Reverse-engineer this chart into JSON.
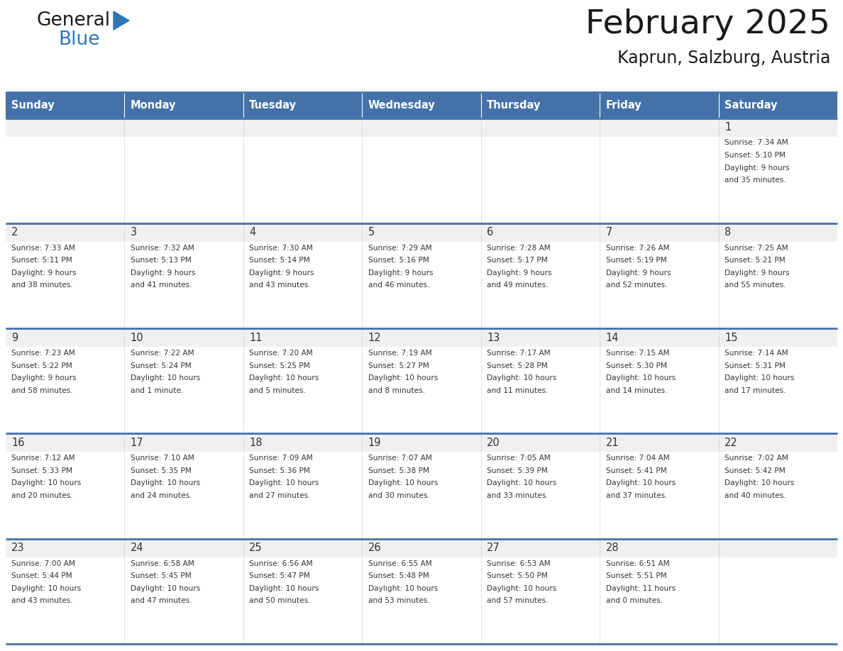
{
  "title": "February 2025",
  "subtitle": "Kaprun, Salzburg, Austria",
  "days_of_week": [
    "Sunday",
    "Monday",
    "Tuesday",
    "Wednesday",
    "Thursday",
    "Friday",
    "Saturday"
  ],
  "header_bg": "#4472a8",
  "header_text": "#ffffff",
  "cell_bg_light": "#f0f0f0",
  "cell_bg_white": "#ffffff",
  "row_border_color": "#4472a8",
  "text_color": "#333333",
  "calendar_data": [
    [
      {
        "day": null,
        "sunrise": null,
        "sunset": null,
        "daylight": null
      },
      {
        "day": null,
        "sunrise": null,
        "sunset": null,
        "daylight": null
      },
      {
        "day": null,
        "sunrise": null,
        "sunset": null,
        "daylight": null
      },
      {
        "day": null,
        "sunrise": null,
        "sunset": null,
        "daylight": null
      },
      {
        "day": null,
        "sunrise": null,
        "sunset": null,
        "daylight": null
      },
      {
        "day": null,
        "sunrise": null,
        "sunset": null,
        "daylight": null
      },
      {
        "day": 1,
        "sunrise": "7:34 AM",
        "sunset": "5:10 PM",
        "daylight": "9 hours\nand 35 minutes."
      }
    ],
    [
      {
        "day": 2,
        "sunrise": "7:33 AM",
        "sunset": "5:11 PM",
        "daylight": "9 hours\nand 38 minutes."
      },
      {
        "day": 3,
        "sunrise": "7:32 AM",
        "sunset": "5:13 PM",
        "daylight": "9 hours\nand 41 minutes."
      },
      {
        "day": 4,
        "sunrise": "7:30 AM",
        "sunset": "5:14 PM",
        "daylight": "9 hours\nand 43 minutes."
      },
      {
        "day": 5,
        "sunrise": "7:29 AM",
        "sunset": "5:16 PM",
        "daylight": "9 hours\nand 46 minutes."
      },
      {
        "day": 6,
        "sunrise": "7:28 AM",
        "sunset": "5:17 PM",
        "daylight": "9 hours\nand 49 minutes."
      },
      {
        "day": 7,
        "sunrise": "7:26 AM",
        "sunset": "5:19 PM",
        "daylight": "9 hours\nand 52 minutes."
      },
      {
        "day": 8,
        "sunrise": "7:25 AM",
        "sunset": "5:21 PM",
        "daylight": "9 hours\nand 55 minutes."
      }
    ],
    [
      {
        "day": 9,
        "sunrise": "7:23 AM",
        "sunset": "5:22 PM",
        "daylight": "9 hours\nand 58 minutes."
      },
      {
        "day": 10,
        "sunrise": "7:22 AM",
        "sunset": "5:24 PM",
        "daylight": "10 hours\nand 1 minute."
      },
      {
        "day": 11,
        "sunrise": "7:20 AM",
        "sunset": "5:25 PM",
        "daylight": "10 hours\nand 5 minutes."
      },
      {
        "day": 12,
        "sunrise": "7:19 AM",
        "sunset": "5:27 PM",
        "daylight": "10 hours\nand 8 minutes."
      },
      {
        "day": 13,
        "sunrise": "7:17 AM",
        "sunset": "5:28 PM",
        "daylight": "10 hours\nand 11 minutes."
      },
      {
        "day": 14,
        "sunrise": "7:15 AM",
        "sunset": "5:30 PM",
        "daylight": "10 hours\nand 14 minutes."
      },
      {
        "day": 15,
        "sunrise": "7:14 AM",
        "sunset": "5:31 PM",
        "daylight": "10 hours\nand 17 minutes."
      }
    ],
    [
      {
        "day": 16,
        "sunrise": "7:12 AM",
        "sunset": "5:33 PM",
        "daylight": "10 hours\nand 20 minutes."
      },
      {
        "day": 17,
        "sunrise": "7:10 AM",
        "sunset": "5:35 PM",
        "daylight": "10 hours\nand 24 minutes."
      },
      {
        "day": 18,
        "sunrise": "7:09 AM",
        "sunset": "5:36 PM",
        "daylight": "10 hours\nand 27 minutes."
      },
      {
        "day": 19,
        "sunrise": "7:07 AM",
        "sunset": "5:38 PM",
        "daylight": "10 hours\nand 30 minutes."
      },
      {
        "day": 20,
        "sunrise": "7:05 AM",
        "sunset": "5:39 PM",
        "daylight": "10 hours\nand 33 minutes."
      },
      {
        "day": 21,
        "sunrise": "7:04 AM",
        "sunset": "5:41 PM",
        "daylight": "10 hours\nand 37 minutes."
      },
      {
        "day": 22,
        "sunrise": "7:02 AM",
        "sunset": "5:42 PM",
        "daylight": "10 hours\nand 40 minutes."
      }
    ],
    [
      {
        "day": 23,
        "sunrise": "7:00 AM",
        "sunset": "5:44 PM",
        "daylight": "10 hours\nand 43 minutes."
      },
      {
        "day": 24,
        "sunrise": "6:58 AM",
        "sunset": "5:45 PM",
        "daylight": "10 hours\nand 47 minutes."
      },
      {
        "day": 25,
        "sunrise": "6:56 AM",
        "sunset": "5:47 PM",
        "daylight": "10 hours\nand 50 minutes."
      },
      {
        "day": 26,
        "sunrise": "6:55 AM",
        "sunset": "5:48 PM",
        "daylight": "10 hours\nand 53 minutes."
      },
      {
        "day": 27,
        "sunrise": "6:53 AM",
        "sunset": "5:50 PM",
        "daylight": "10 hours\nand 57 minutes."
      },
      {
        "day": 28,
        "sunrise": "6:51 AM",
        "sunset": "5:51 PM",
        "daylight": "11 hours\nand 0 minutes."
      },
      {
        "day": null,
        "sunrise": null,
        "sunset": null,
        "daylight": null
      }
    ]
  ]
}
